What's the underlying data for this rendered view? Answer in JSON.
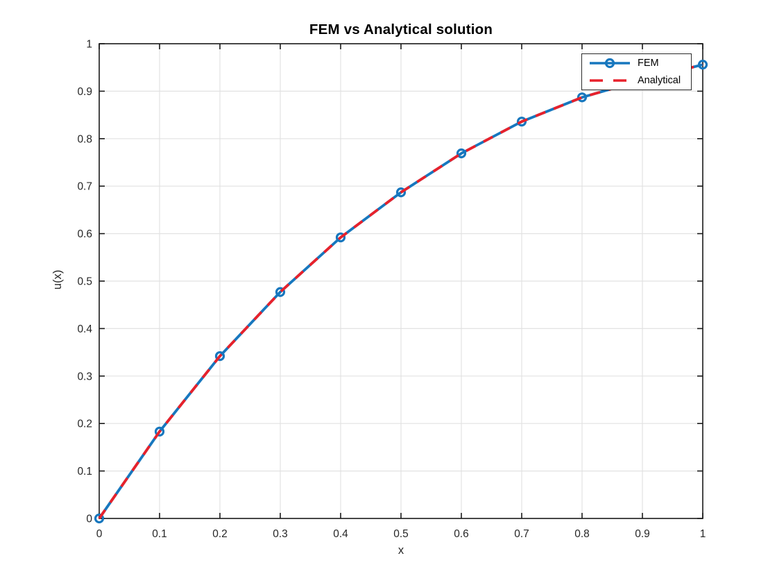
{
  "chart_data": {
    "type": "line",
    "title": "FEM vs Analytical solution",
    "xlabel": "x",
    "ylabel": "u(x)",
    "xlim": [
      0,
      1
    ],
    "ylim": [
      0,
      1
    ],
    "grid": true,
    "legend_position": "northeast",
    "xticks": [
      0,
      0.1,
      0.2,
      0.3,
      0.4,
      0.5,
      0.6,
      0.7,
      0.8,
      0.9,
      1
    ],
    "xtick_labels": [
      "0",
      "0.1",
      "0.2",
      "0.3",
      "0.4",
      "0.5",
      "0.6",
      "0.7",
      "0.8",
      "0.9",
      "1"
    ],
    "yticks": [
      0,
      0.1,
      0.2,
      0.3,
      0.4,
      0.5,
      0.6,
      0.7,
      0.8,
      0.9,
      1
    ],
    "ytick_labels": [
      "0",
      "0.1",
      "0.2",
      "0.3",
      "0.4",
      "0.5",
      "0.6",
      "0.7",
      "0.8",
      "0.9",
      "1"
    ],
    "x": [
      0,
      0.1,
      0.2,
      0.3,
      0.4,
      0.5,
      0.6,
      0.7,
      0.8,
      0.9,
      1.0
    ],
    "series": [
      {
        "name": "FEM",
        "color": "#1777be",
        "line_style": "solid",
        "marker": "circle",
        "y": [
          0,
          0.183,
          0.342,
          0.477,
          0.592,
          0.687,
          0.769,
          0.836,
          0.887,
          0.924,
          0.956
        ]
      },
      {
        "name": "Analytical",
        "color": "#e8212b",
        "line_style": "dashed",
        "marker": "none",
        "y": [
          0,
          0.183,
          0.342,
          0.477,
          0.592,
          0.687,
          0.769,
          0.836,
          0.887,
          0.924,
          0.956
        ]
      }
    ]
  }
}
